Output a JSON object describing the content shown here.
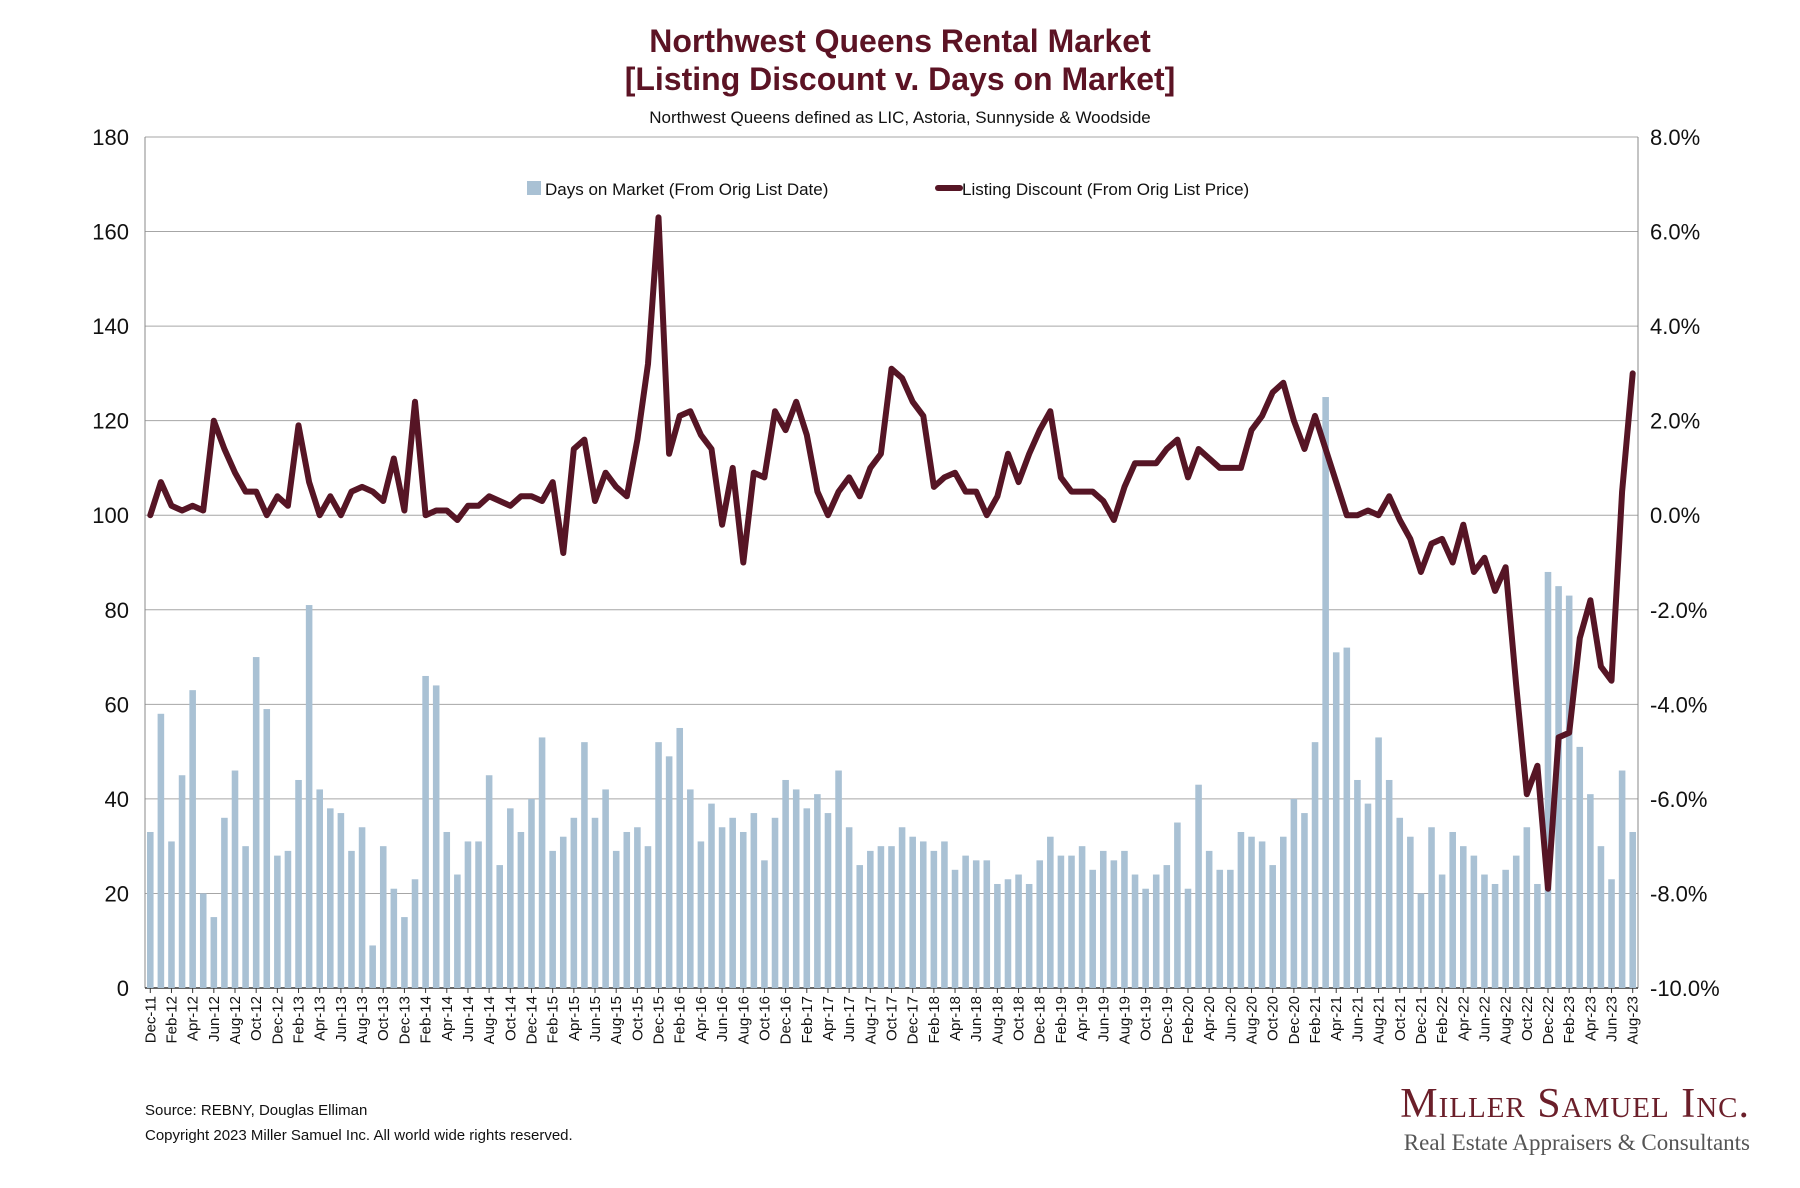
{
  "title_line1": "Northwest Queens Rental Market",
  "title_line2": "[Listing Discount v. Days on Market]",
  "subtitle": "Northwest Queens defined as LIC, Astoria, Sunnyside & Woodside",
  "source": "Source: REBNY, Douglas Elliman",
  "copyright": "Copyright 2023 Miller Samuel Inc.  All world wide rights reserved.",
  "logo_name": "Miller Samuel Inc.",
  "logo_tagline": "Real Estate Appraisers & Consultants",
  "colors": {
    "bars": "#a9c1d4",
    "line": "#561525",
    "title": "#5c1324",
    "grid": "#a6a6a6"
  },
  "chart_data": {
    "type": "bar",
    "x_start": "Dec-11",
    "x_labels": [
      "Dec-11",
      "Feb-12",
      "Apr-12",
      "Jun-12",
      "Aug-12",
      "Oct-12",
      "Dec-12",
      "Feb-13",
      "Apr-13",
      "Jun-13",
      "Aug-13",
      "Oct-13",
      "Dec-13",
      "Feb-14",
      "Apr-14",
      "Jun-14",
      "Aug-14",
      "Oct-14",
      "Dec-14",
      "Feb-15",
      "Apr-15",
      "Jun-15",
      "Aug-15",
      "Oct-15",
      "Dec-15",
      "Feb-16",
      "Apr-16",
      "Jun-16",
      "Aug-16",
      "Oct-16",
      "Dec-16",
      "Feb-17",
      "Apr-17",
      "Jun-17",
      "Aug-17",
      "Oct-17",
      "Dec-17",
      "Feb-18",
      "Apr-18",
      "Jun-18",
      "Aug-18",
      "Oct-18",
      "Dec-18",
      "Feb-19",
      "Apr-19",
      "Jun-19",
      "Aug-19",
      "Oct-19",
      "Dec-19",
      "Feb-20",
      "Apr-20",
      "Jun-20",
      "Aug-20",
      "Oct-20",
      "Dec-20",
      "Feb-21",
      "Apr-21",
      "Jun-21",
      "Aug-21",
      "Oct-21",
      "Dec-21",
      "Feb-22",
      "Apr-22",
      "Jun-22",
      "Aug-22",
      "Oct-22",
      "Dec-22",
      "Feb-23",
      "Apr-23",
      "Jun-23",
      "Aug-23"
    ],
    "y_left_ticks": [
      "0",
      "20",
      "40",
      "60",
      "80",
      "100",
      "120",
      "140",
      "160",
      "180"
    ],
    "y_right_ticks": [
      "-10.0%",
      "-8.0%",
      "-6.0%",
      "-4.0%",
      "-2.0%",
      "0.0%",
      "2.0%",
      "4.0%",
      "6.0%",
      "8.0%"
    ],
    "y_left_range": [
      0,
      180
    ],
    "y_right_range": [
      -10,
      8
    ],
    "grid": true,
    "legend_position": "top",
    "series": [
      {
        "name": "Days on Market (From Orig List Date)",
        "type": "bar",
        "axis": "left",
        "values": [
          33,
          58,
          31,
          45,
          63,
          20,
          15,
          36,
          46,
          30,
          70,
          59,
          28,
          29,
          44,
          81,
          42,
          38,
          37,
          29,
          34,
          9,
          30,
          21,
          15,
          23,
          66,
          64,
          33,
          24,
          31,
          31,
          45,
          26,
          38,
          33,
          40,
          53,
          29,
          32,
          36,
          52,
          36,
          42,
          29,
          33,
          34,
          30,
          52,
          49,
          55,
          42,
          31,
          39,
          34,
          36,
          33,
          37,
          27,
          36,
          44,
          42,
          38,
          41,
          37,
          46,
          34,
          26,
          29,
          30,
          30,
          34,
          32,
          31,
          29,
          31,
          25,
          28,
          27,
          27,
          22,
          23,
          24,
          22,
          27,
          32,
          28,
          28,
          30,
          25,
          29,
          27,
          29,
          24,
          21,
          24,
          26,
          35,
          21,
          43,
          29,
          25,
          25,
          33,
          32,
          31,
          26,
          32,
          40,
          37,
          52,
          125,
          71,
          72,
          44,
          39,
          53,
          44,
          36,
          32,
          20,
          34,
          24,
          33,
          30,
          28,
          24,
          22,
          25,
          28,
          34,
          22,
          88,
          85,
          83,
          51,
          41,
          30,
          23,
          46,
          33
        ]
      },
      {
        "name": "Listing Discount (From Orig List Price)",
        "type": "line",
        "axis": "right",
        "unit": "%",
        "values": [
          0.0,
          0.7,
          0.2,
          0.1,
          0.2,
          0.1,
          2.0,
          1.4,
          0.9,
          0.5,
          0.5,
          0.0,
          0.4,
          0.2,
          1.9,
          0.7,
          0.0,
          0.4,
          0.0,
          0.5,
          0.6,
          0.5,
          0.3,
          1.2,
          0.1,
          2.4,
          0.0,
          0.1,
          0.1,
          -0.1,
          0.2,
          0.2,
          0.4,
          0.3,
          0.2,
          0.4,
          0.4,
          0.3,
          0.7,
          -0.8,
          1.4,
          1.6,
          0.3,
          0.9,
          0.6,
          0.4,
          1.6,
          3.2,
          6.3,
          1.3,
          2.1,
          2.2,
          1.7,
          1.4,
          -0.2,
          1.0,
          -1.0,
          0.9,
          0.8,
          2.2,
          1.8,
          2.4,
          1.7,
          0.5,
          0.0,
          0.5,
          0.8,
          0.4,
          1.0,
          1.3,
          3.1,
          2.9,
          2.4,
          2.1,
          0.6,
          0.8,
          0.9,
          0.5,
          0.5,
          0.0,
          0.4,
          1.3,
          0.7,
          1.3,
          1.8,
          2.2,
          0.8,
          0.5,
          0.5,
          0.5,
          0.3,
          -0.1,
          0.6,
          1.1,
          1.1,
          1.1,
          1.4,
          1.6,
          0.8,
          1.4,
          1.2,
          1.0,
          1.0,
          1.0,
          1.8,
          2.1,
          2.6,
          2.8,
          2.0,
          1.4,
          2.1,
          1.4,
          0.7,
          0.0,
          0.0,
          0.1,
          0.0,
          0.4,
          -0.1,
          -0.5,
          -1.2,
          -0.6,
          -0.5,
          -1.0,
          -0.2,
          -1.2,
          -0.9,
          -1.6,
          -1.1,
          -3.6,
          -5.9,
          -5.3,
          -7.9,
          -4.7,
          -4.6,
          -2.6,
          -1.8,
          -3.2,
          -3.5,
          0.5,
          3.0
        ]
      }
    ]
  }
}
